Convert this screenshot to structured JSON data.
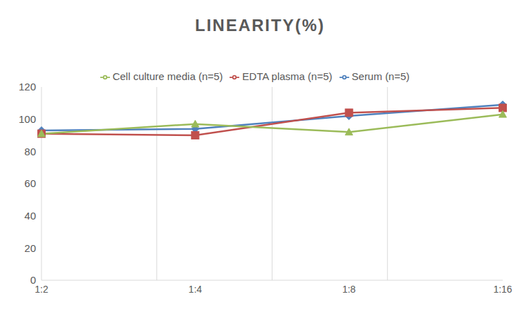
{
  "chart_data": {
    "type": "line",
    "title": "LINEARITY(%)",
    "categories": [
      "1:2",
      "1:4",
      "1:8",
      "1:16"
    ],
    "series": [
      {
        "name": "Serum (n=5)",
        "color": "#4f81bd",
        "marker": "diamond",
        "values": [
          93,
          94,
          102,
          109
        ]
      },
      {
        "name": "EDTA plasma (n=5)",
        "color": "#c0504d",
        "marker": "square",
        "values": [
          91,
          90,
          104,
          107
        ]
      },
      {
        "name": "Cell culture media (n=5)",
        "color": "#9bbb59",
        "marker": "triangle",
        "values": [
          91,
          97,
          92,
          103
        ]
      }
    ],
    "ylim": [
      0,
      120
    ],
    "yticks": [
      0,
      20,
      40,
      60,
      80,
      100,
      120
    ],
    "grid": true,
    "legend": "top"
  }
}
